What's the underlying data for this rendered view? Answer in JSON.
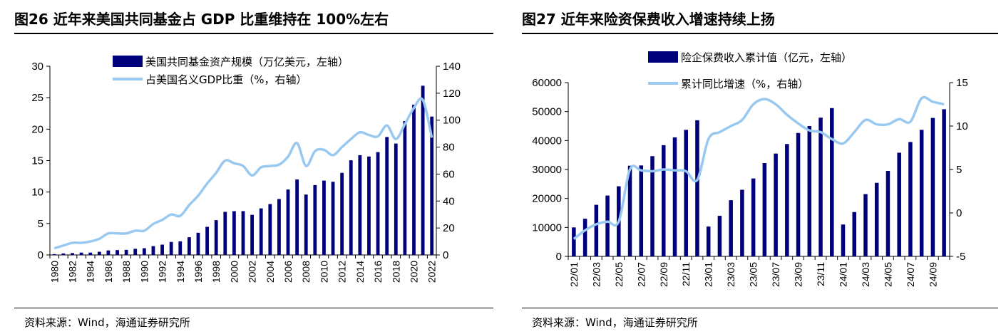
{
  "panels": [
    {
      "title": "图26 近年来美国共同基金占 GDP 比重维持在 100%左右",
      "source": "资料来源：Wind，海通证券研究所"
    },
    {
      "title": "图27 近年来险资保费收入增速持续上扬",
      "source": "资料来源：Wind，海通证券研究所"
    }
  ],
  "colors": {
    "bar": "#00007A",
    "line": "#99C9F0"
  },
  "chart_data": [
    {
      "type": "bar+line",
      "title": "图26 近年来美国共同基金占 GDP 比重维持在 100%左右",
      "categories": [
        "1980",
        "1981",
        "1982",
        "1983",
        "1984",
        "1985",
        "1986",
        "1987",
        "1988",
        "1989",
        "1990",
        "1991",
        "1992",
        "1993",
        "1994",
        "1995",
        "1996",
        "1997",
        "1998",
        "1999",
        "2000",
        "2001",
        "2002",
        "2003",
        "2004",
        "2005",
        "2006",
        "2007",
        "2008",
        "2009",
        "2010",
        "2011",
        "2012",
        "2013",
        "2014",
        "2015",
        "2016",
        "2017",
        "2018",
        "2019",
        "2020",
        "2021",
        "2022"
      ],
      "tick_labels": [
        "1980",
        "1982",
        "1984",
        "1986",
        "1988",
        "1990",
        "1992",
        "1994",
        "1996",
        "1998",
        "2000",
        "2002",
        "2004",
        "2006",
        "2008",
        "2010",
        "2012",
        "2014",
        "2016",
        "2018",
        "2020",
        "2022"
      ],
      "series": [
        {
          "name": "美国共同基金资产规模（万亿美元，左轴）",
          "type": "bar",
          "axis": "left",
          "values": [
            0.13,
            0.24,
            0.3,
            0.37,
            0.37,
            0.5,
            0.72,
            0.77,
            0.81,
            0.98,
            1.07,
            1.4,
            1.64,
            2.07,
            2.16,
            2.81,
            3.53,
            4.47,
            5.53,
            6.85,
            6.96,
            6.97,
            6.38,
            7.4,
            8.09,
            8.89,
            10.4,
            12.0,
            9.6,
            11.11,
            11.82,
            11.63,
            13.05,
            15.05,
            15.86,
            15.65,
            16.35,
            18.75,
            17.71,
            21.29,
            23.9,
            26.9,
            22.0
          ]
        },
        {
          "name": "占美国名义GDP比重（%，右轴）",
          "type": "line",
          "axis": "right",
          "values": [
            5,
            7,
            9,
            9,
            10,
            12,
            16,
            16,
            16,
            18,
            18,
            23,
            26,
            30,
            29,
            37,
            44,
            53,
            61,
            70,
            68,
            66,
            59,
            65,
            66,
            67,
            73,
            83,
            66,
            77,
            78,
            74,
            80,
            86,
            91,
            89,
            88,
            96,
            86,
            97,
            109,
            115,
            87
          ]
        }
      ],
      "left_axis": {
        "ylim": [
          0,
          30
        ],
        "ticks": [
          "0",
          "5",
          "10",
          "15",
          "20",
          "25",
          "30"
        ]
      },
      "right_axis": {
        "ylim": [
          0,
          140
        ],
        "ticks": [
          "0",
          "20",
          "40",
          "60",
          "80",
          "100",
          "120",
          "140"
        ]
      },
      "legend_position": "top-center"
    },
    {
      "type": "bar+line",
      "title": "图27 近年来险资保费收入增速持续上扬",
      "categories": [
        "22/01",
        "22/02",
        "22/03",
        "22/04",
        "22/05",
        "22/06",
        "22/07",
        "22/08",
        "22/09",
        "22/10",
        "22/11",
        "22/12",
        "23/01",
        "23/02",
        "23/03",
        "23/04",
        "23/05",
        "23/06",
        "23/07",
        "23/08",
        "23/09",
        "23/10",
        "23/11",
        "23/12",
        "24/01",
        "24/02",
        "24/03",
        "24/04",
        "24/05",
        "24/06",
        "24/07",
        "24/08",
        "24/09",
        "24/10"
      ],
      "tick_labels": [
        "22/01",
        "22/03",
        "22/05",
        "22/07",
        "22/09",
        "22/11",
        "23/01",
        "23/03",
        "23/05",
        "23/07",
        "23/09",
        "23/11",
        "24/01",
        "24/03",
        "24/05",
        "24/07",
        "24/09"
      ],
      "series": [
        {
          "name": "险企保费收入累计值（亿元，左轴）",
          "type": "bar",
          "axis": "left",
          "values": [
            10000,
            13000,
            17800,
            21000,
            24200,
            31300,
            31400,
            34600,
            38400,
            41100,
            43700,
            47000,
            10300,
            14000,
            19400,
            23000,
            26900,
            32200,
            35500,
            38800,
            42600,
            45000,
            47900,
            51200,
            11000,
            15300,
            21500,
            25400,
            29500,
            35800,
            39500,
            43700,
            47800,
            50800
          ]
        },
        {
          "name": "累计同比增速（%，右轴）",
          "type": "line",
          "axis": "right",
          "values": [
            -3.0,
            -2.0,
            -1.3,
            -1.0,
            -1.0,
            5.0,
            4.9,
            4.8,
            5.0,
            4.9,
            4.8,
            3.8,
            8.5,
            9.3,
            10.0,
            10.7,
            12.5,
            13.1,
            12.5,
            11.3,
            10.3,
            9.5,
            9.3,
            8.5,
            8.0,
            9.3,
            10.7,
            10.2,
            10.2,
            10.8,
            10.5,
            13.2,
            12.8,
            12.5
          ]
        }
      ],
      "left_axis": {
        "ylim": [
          0,
          60000
        ],
        "ticks": [
          "0",
          "10000",
          "20000",
          "30000",
          "40000",
          "50000",
          "60000"
        ]
      },
      "right_axis": {
        "ylim": [
          -5,
          15
        ],
        "ticks": [
          "-5",
          "0",
          "5",
          "10",
          "15"
        ]
      },
      "legend_position": "top-center"
    }
  ]
}
